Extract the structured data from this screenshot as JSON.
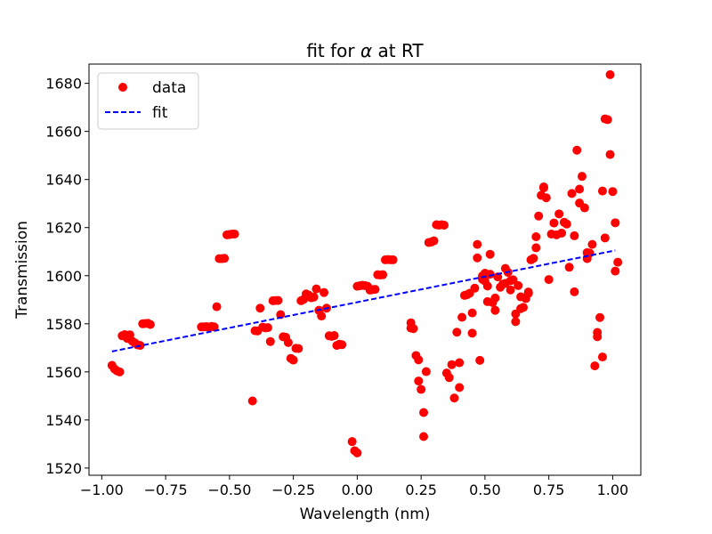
{
  "chart_data": {
    "type": "scatter",
    "title": "fit for α at RT",
    "title_prefix": "fit for ",
    "title_symbol": "α",
    "title_suffix": " at RT",
    "xlabel": "Wavelength (nm)",
    "ylabel": "Transmission",
    "xlim": [
      -1.05,
      1.11
    ],
    "ylim": [
      1517,
      1688
    ],
    "x_ticks": [
      -1.0,
      -0.75,
      -0.5,
      -0.25,
      0.0,
      0.25,
      0.5,
      0.75,
      1.0
    ],
    "x_tick_labels": [
      "−1.00",
      "−0.75",
      "−0.50",
      "−0.25",
      "0.00",
      "0.25",
      "0.50",
      "0.75",
      "1.00"
    ],
    "y_ticks": [
      1520,
      1540,
      1560,
      1580,
      1600,
      1620,
      1640,
      1660,
      1680
    ],
    "y_tick_labels": [
      "1520",
      "1540",
      "1560",
      "1580",
      "1600",
      "1620",
      "1640",
      "1660",
      "1680"
    ],
    "grid": false,
    "legend_position": "top-left",
    "legend": [
      {
        "label": "data",
        "marker": "circle",
        "color": "#ff0000"
      },
      {
        "label": "fit",
        "style": "dashed",
        "color": "#0000ff"
      }
    ],
    "series": [
      {
        "name": "data",
        "kind": "scatter",
        "color": "#ff0000",
        "points": [
          [
            -0.96,
            1562.7
          ],
          [
            -0.95,
            1561.2
          ],
          [
            -0.94,
            1560.4
          ],
          [
            -0.93,
            1560.0
          ],
          [
            -0.92,
            1575.0
          ],
          [
            -0.91,
            1575.5
          ],
          [
            -0.9,
            1573.9
          ],
          [
            -0.89,
            1575.4
          ],
          [
            -0.88,
            1572.7
          ],
          [
            -0.87,
            1572.0
          ],
          [
            -0.86,
            1571.2
          ],
          [
            -0.85,
            1571.0
          ],
          [
            -0.84,
            1580.0
          ],
          [
            -0.83,
            1580.1
          ],
          [
            -0.82,
            1580.2
          ],
          [
            -0.81,
            1579.7
          ],
          [
            -0.61,
            1578.7
          ],
          [
            -0.6,
            1578.7
          ],
          [
            -0.59,
            1578.8
          ],
          [
            -0.58,
            1578.6
          ],
          [
            -0.57,
            1578.9
          ],
          [
            -0.56,
            1578.7
          ],
          [
            -0.55,
            1587.1
          ],
          [
            -0.54,
            1607.1
          ],
          [
            -0.53,
            1607.1
          ],
          [
            -0.52,
            1607.2
          ],
          [
            -0.51,
            1617.0
          ],
          [
            -0.5,
            1617.1
          ],
          [
            -0.49,
            1617.3
          ],
          [
            -0.48,
            1617.3
          ],
          [
            -0.41,
            1547.9
          ],
          [
            -0.4,
            1577.1
          ],
          [
            -0.39,
            1577.0
          ],
          [
            -0.38,
            1586.5
          ],
          [
            -0.37,
            1578.6
          ],
          [
            -0.36,
            1578.3
          ],
          [
            -0.35,
            1578.4
          ],
          [
            -0.34,
            1572.6
          ],
          [
            -0.33,
            1589.6
          ],
          [
            -0.32,
            1589.7
          ],
          [
            -0.31,
            1589.7
          ],
          [
            -0.3,
            1583.8
          ],
          [
            -0.29,
            1574.6
          ],
          [
            -0.28,
            1574.4
          ],
          [
            -0.27,
            1572.2
          ],
          [
            -0.26,
            1565.6
          ],
          [
            -0.25,
            1564.9
          ],
          [
            -0.24,
            1569.8
          ],
          [
            -0.23,
            1569.7
          ],
          [
            -0.22,
            1589.6
          ],
          [
            -0.21,
            1590.1
          ],
          [
            -0.2,
            1592.4
          ],
          [
            -0.19,
            1591.9
          ],
          [
            -0.18,
            1590.8
          ],
          [
            -0.17,
            1591.1
          ],
          [
            -0.16,
            1594.5
          ],
          [
            -0.15,
            1585.6
          ],
          [
            -0.14,
            1583.2
          ],
          [
            -0.13,
            1593.0
          ],
          [
            -0.12,
            1586.5
          ],
          [
            -0.11,
            1575.0
          ],
          [
            -0.1,
            1574.8
          ],
          [
            -0.09,
            1575.1
          ],
          [
            -0.08,
            1571.0
          ],
          [
            -0.07,
            1571.5
          ],
          [
            -0.06,
            1571.3
          ],
          [
            -0.02,
            1531.0
          ],
          [
            -0.01,
            1527.2
          ],
          [
            0.0,
            1526.3
          ],
          [
            0.0,
            1595.6
          ],
          [
            0.01,
            1595.8
          ],
          [
            0.02,
            1596.0
          ],
          [
            0.03,
            1595.9
          ],
          [
            0.04,
            1595.6
          ],
          [
            0.05,
            1594.0
          ],
          [
            0.06,
            1594.2
          ],
          [
            0.07,
            1594.3
          ],
          [
            0.08,
            1600.4
          ],
          [
            0.09,
            1600.3
          ],
          [
            0.1,
            1600.4
          ],
          [
            0.11,
            1606.6
          ],
          [
            0.12,
            1606.7
          ],
          [
            0.13,
            1606.6
          ],
          [
            0.14,
            1606.6
          ],
          [
            0.21,
            1578.2
          ],
          [
            0.21,
            1580.4
          ],
          [
            0.22,
            1578.0
          ],
          [
            0.23,
            1566.8
          ],
          [
            0.24,
            1556.2
          ],
          [
            0.24,
            1565.0
          ],
          [
            0.25,
            1552.7
          ],
          [
            0.26,
            1533.1
          ],
          [
            0.26,
            1543.1
          ],
          [
            0.27,
            1560.1
          ],
          [
            0.28,
            1613.8
          ],
          [
            0.29,
            1614.0
          ],
          [
            0.3,
            1614.5
          ],
          [
            0.31,
            1621.2
          ],
          [
            0.32,
            1621.0
          ],
          [
            0.33,
            1621.2
          ],
          [
            0.34,
            1621.0
          ],
          [
            0.35,
            1559.5
          ],
          [
            0.36,
            1557.6
          ],
          [
            0.37,
            1563.0
          ],
          [
            0.38,
            1549.1
          ],
          [
            0.39,
            1576.5
          ],
          [
            0.4,
            1563.8
          ],
          [
            0.4,
            1553.5
          ],
          [
            0.41,
            1582.7
          ],
          [
            0.42,
            1591.8
          ],
          [
            0.43,
            1592.1
          ],
          [
            0.44,
            1592.7
          ],
          [
            0.45,
            1584.5
          ],
          [
            0.45,
            1576.1
          ],
          [
            0.46,
            1594.8
          ],
          [
            0.47,
            1607.4
          ],
          [
            0.47,
            1613.0
          ],
          [
            0.48,
            1564.8
          ],
          [
            0.49,
            1599.9
          ],
          [
            0.49,
            1598.5
          ],
          [
            0.5,
            1601.0
          ],
          [
            0.5,
            1597.8
          ],
          [
            0.51,
            1595.7
          ],
          [
            0.51,
            1589.2
          ],
          [
            0.52,
            1600.6
          ],
          [
            0.52,
            1608.9
          ],
          [
            0.53,
            1588.8
          ],
          [
            0.54,
            1590.7
          ],
          [
            0.54,
            1585.6
          ],
          [
            0.55,
            1599.5
          ],
          [
            0.56,
            1595.2
          ],
          [
            0.57,
            1596.5
          ],
          [
            0.58,
            1603.0
          ],
          [
            0.58,
            1596.8
          ],
          [
            0.59,
            1601.4
          ],
          [
            0.6,
            1594.1
          ],
          [
            0.6,
            1597.9
          ],
          [
            0.61,
            1598.3
          ],
          [
            0.62,
            1580.9
          ],
          [
            0.62,
            1584.1
          ],
          [
            0.63,
            1595.9
          ],
          [
            0.64,
            1591.2
          ],
          [
            0.64,
            1586.3
          ],
          [
            0.65,
            1586.8
          ],
          [
            0.66,
            1590.5
          ],
          [
            0.67,
            1592.6
          ],
          [
            0.67,
            1593.2
          ],
          [
            0.68,
            1606.6
          ],
          [
            0.69,
            1607.2
          ],
          [
            0.7,
            1611.6
          ],
          [
            0.7,
            1616.2
          ],
          [
            0.71,
            1624.8
          ],
          [
            0.72,
            1633.4
          ],
          [
            0.73,
            1636.5
          ],
          [
            0.73,
            1636.9
          ],
          [
            0.74,
            1632.4
          ],
          [
            0.75,
            1598.4
          ],
          [
            0.76,
            1617.3
          ],
          [
            0.77,
            1621.9
          ],
          [
            0.78,
            1617.0
          ],
          [
            0.79,
            1625.7
          ],
          [
            0.8,
            1617.7
          ],
          [
            0.81,
            1622.2
          ],
          [
            0.82,
            1621.5
          ],
          [
            0.83,
            1603.5
          ],
          [
            0.84,
            1634.2
          ],
          [
            0.85,
            1593.3
          ],
          [
            0.85,
            1616.6
          ],
          [
            0.86,
            1652.2
          ],
          [
            0.87,
            1630.2
          ],
          [
            0.87,
            1636.0
          ],
          [
            0.88,
            1641.3
          ],
          [
            0.89,
            1628.2
          ],
          [
            0.9,
            1609.6
          ],
          [
            0.9,
            1607.1
          ],
          [
            0.91,
            1609.4
          ],
          [
            0.92,
            1613.0
          ],
          [
            0.93,
            1562.5
          ],
          [
            0.94,
            1576.4
          ],
          [
            0.94,
            1574.6
          ],
          [
            0.95,
            1582.6
          ],
          [
            0.96,
            1566.2
          ],
          [
            0.96,
            1635.2
          ],
          [
            0.97,
            1615.7
          ],
          [
            0.97,
            1665.2
          ],
          [
            0.98,
            1664.9
          ],
          [
            0.99,
            1683.6
          ],
          [
            0.99,
            1650.4
          ],
          [
            1.0,
            1635.0
          ],
          [
            1.01,
            1622.0
          ],
          [
            1.01,
            1601.9
          ],
          [
            1.02,
            1605.6
          ]
        ]
      },
      {
        "name": "fit",
        "kind": "line",
        "style": "dashed",
        "color": "#0000ff",
        "points": [
          [
            -0.96,
            1568.5
          ],
          [
            1.01,
            1610.5
          ]
        ]
      }
    ]
  }
}
